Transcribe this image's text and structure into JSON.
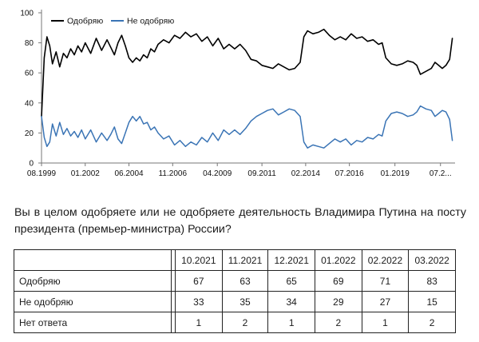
{
  "chart_data": {
    "type": "line",
    "legend_position": "top-left",
    "grid": false,
    "ylim": [
      0,
      100
    ],
    "yticks": [
      0,
      20,
      40,
      60,
      80,
      100
    ],
    "xlim": [
      1999.6,
      2022.3
    ],
    "xtick_labels": [
      "08.1999",
      "01.2002",
      "06.2004",
      "11.2006",
      "04.2009",
      "09.2011",
      "02.2014",
      "07.2016",
      "01.2019",
      "07.2..."
    ],
    "xtick_positions": [
      1999.6,
      2002.0,
      2004.4,
      2006.8,
      2009.25,
      2011.7,
      2014.1,
      2016.5,
      2019.0,
      2021.5
    ],
    "series": [
      {
        "name": "Одобряю",
        "color": "#000000",
        "x": [
          1999.6,
          1999.75,
          1999.9,
          2000.05,
          2000.2,
          2000.4,
          2000.6,
          2000.8,
          2001.0,
          2001.2,
          2001.4,
          2001.6,
          2001.8,
          2002.0,
          2002.3,
          2002.6,
          2002.9,
          2003.2,
          2003.4,
          2003.6,
          2003.8,
          2004.0,
          2004.2,
          2004.4,
          2004.6,
          2004.8,
          2005.0,
          2005.2,
          2005.4,
          2005.6,
          2005.8,
          2006.0,
          2006.3,
          2006.6,
          2006.9,
          2007.2,
          2007.5,
          2007.8,
          2008.1,
          2008.4,
          2008.7,
          2009.0,
          2009.3,
          2009.6,
          2009.9,
          2010.2,
          2010.5,
          2010.8,
          2011.1,
          2011.4,
          2011.7,
          2012.0,
          2012.3,
          2012.6,
          2012.9,
          2013.2,
          2013.5,
          2013.8,
          2014.0,
          2014.2,
          2014.5,
          2014.8,
          2015.1,
          2015.4,
          2015.7,
          2016.0,
          2016.3,
          2016.6,
          2016.9,
          2017.2,
          2017.5,
          2017.8,
          2018.1,
          2018.3,
          2018.5,
          2018.8,
          2019.1,
          2019.4,
          2019.7,
          2020.0,
          2020.2,
          2020.4,
          2020.7,
          2021.0,
          2021.2,
          2021.4,
          2021.6,
          2021.8,
          2022.0,
          2022.15
        ],
        "values": [
          31,
          70,
          84,
          78,
          66,
          74,
          64,
          73,
          70,
          76,
          72,
          78,
          74,
          80,
          73,
          83,
          75,
          82,
          77,
          72,
          80,
          85,
          78,
          70,
          67,
          70,
          68,
          72,
          70,
          76,
          74,
          79,
          82,
          80,
          85,
          83,
          87,
          84,
          86,
          81,
          84,
          78,
          83,
          76,
          79,
          76,
          79,
          75,
          69,
          68,
          65,
          64,
          63,
          66,
          64,
          62,
          63,
          67,
          84,
          88,
          86,
          87,
          89,
          85,
          82,
          84,
          82,
          86,
          83,
          84,
          81,
          82,
          79,
          80,
          70,
          66,
          65,
          66,
          68,
          67,
          65,
          59,
          61,
          63,
          67,
          65,
          63,
          65,
          69,
          83
        ]
      },
      {
        "name": "Не одобряю",
        "color": "#3a74b5",
        "x": [
          1999.6,
          1999.75,
          1999.9,
          2000.05,
          2000.2,
          2000.4,
          2000.6,
          2000.8,
          2001.0,
          2001.2,
          2001.4,
          2001.6,
          2001.8,
          2002.0,
          2002.3,
          2002.6,
          2002.9,
          2003.2,
          2003.4,
          2003.6,
          2003.8,
          2004.0,
          2004.2,
          2004.4,
          2004.6,
          2004.8,
          2005.0,
          2005.2,
          2005.4,
          2005.6,
          2005.8,
          2006.0,
          2006.3,
          2006.6,
          2006.9,
          2007.2,
          2007.5,
          2007.8,
          2008.1,
          2008.4,
          2008.7,
          2009.0,
          2009.3,
          2009.6,
          2009.9,
          2010.2,
          2010.5,
          2010.8,
          2011.1,
          2011.4,
          2011.7,
          2012.0,
          2012.3,
          2012.6,
          2012.9,
          2013.2,
          2013.5,
          2013.8,
          2014.0,
          2014.2,
          2014.5,
          2014.8,
          2015.1,
          2015.4,
          2015.7,
          2016.0,
          2016.3,
          2016.6,
          2016.9,
          2017.2,
          2017.5,
          2017.8,
          2018.1,
          2018.3,
          2018.5,
          2018.8,
          2019.1,
          2019.4,
          2019.7,
          2020.0,
          2020.2,
          2020.4,
          2020.7,
          2021.0,
          2021.2,
          2021.4,
          2021.6,
          2021.8,
          2022.0,
          2022.15
        ],
        "values": [
          31,
          17,
          11,
          14,
          26,
          18,
          27,
          19,
          23,
          18,
          21,
          17,
          22,
          16,
          22,
          14,
          20,
          15,
          19,
          24,
          16,
          13,
          20,
          27,
          31,
          28,
          31,
          26,
          27,
          22,
          24,
          20,
          16,
          18,
          12,
          15,
          11,
          14,
          12,
          17,
          14,
          20,
          15,
          22,
          19,
          22,
          19,
          23,
          28,
          31,
          33,
          35,
          36,
          32,
          34,
          36,
          35,
          31,
          14,
          10,
          12,
          11,
          10,
          13,
          16,
          14,
          16,
          12,
          15,
          14,
          17,
          16,
          19,
          18,
          28,
          33,
          34,
          33,
          31,
          32,
          34,
          38,
          36,
          35,
          31,
          33,
          35,
          34,
          29,
          15
        ]
      }
    ]
  },
  "question": "Вы в целом одобряете или не одобряете деятельность Владимира Путина на посту президента (премьер-министра) России?",
  "table": {
    "headers": [
      "10.2021",
      "11.2021",
      "12.2021",
      "01.2022",
      "02.2022",
      "03.2022"
    ],
    "rows": [
      {
        "label": "Одобряю",
        "values": [
          "67",
          "63",
          "65",
          "69",
          "71",
          "83"
        ]
      },
      {
        "label": "Не одобряю",
        "values": [
          "33",
          "35",
          "34",
          "29",
          "27",
          "15"
        ]
      },
      {
        "label": "Нет ответа",
        "values": [
          "1",
          "2",
          "1",
          "2",
          "1",
          "2"
        ]
      }
    ]
  }
}
